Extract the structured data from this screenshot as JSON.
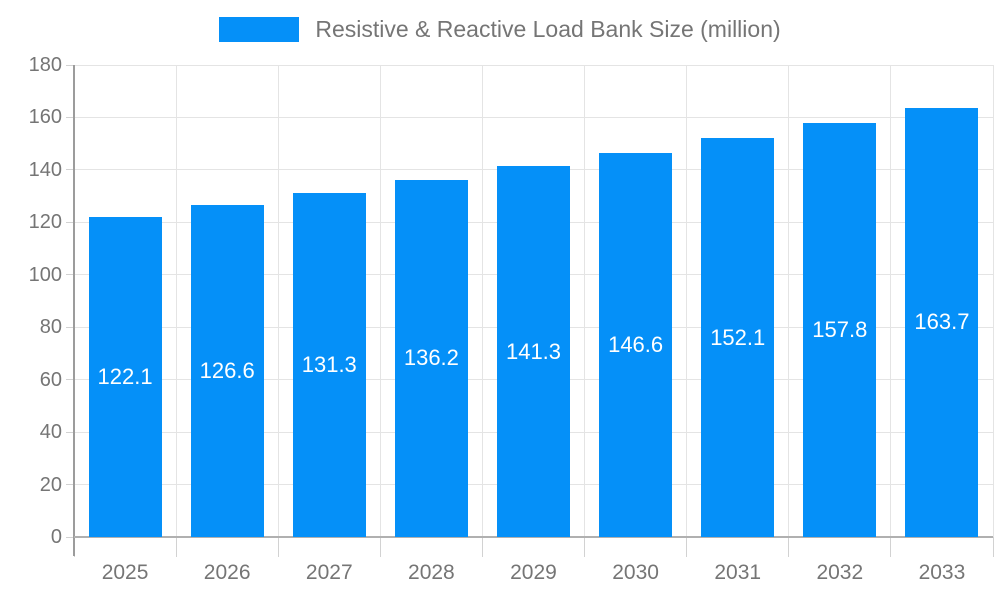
{
  "colors": {
    "bar": "#0590f8",
    "text": "#757575",
    "grid": "#e4e4e4",
    "axis_x": "#b0b0b0",
    "axis_y": "#9c9c9c",
    "tick": "#d2d2d2",
    "data_label": "#ffffff",
    "background": "#ffffff"
  },
  "legend": {
    "label": "Resistive & Reactive Load Bank Size (million)"
  },
  "chart_data": {
    "type": "bar",
    "title": "Resistive & Reactive Load Bank Size (million)",
    "categories": [
      "2025",
      "2026",
      "2027",
      "2028",
      "2029",
      "2030",
      "2031",
      "2032",
      "2033"
    ],
    "values": [
      122.1,
      126.6,
      131.3,
      136.2,
      141.3,
      146.6,
      152.1,
      157.8,
      163.7
    ],
    "series_name": "Resistive & Reactive Load Bank Size (million)",
    "xlabel": "",
    "ylabel": "",
    "ylim": [
      0,
      180
    ],
    "ytick_step": 20,
    "yticks": [
      0,
      20,
      40,
      60,
      80,
      100,
      120,
      140,
      160,
      180
    ],
    "grid": "horizontal-and-vertical",
    "legend_position": "top-center",
    "bar_label_position": "inside-center",
    "bar_label_decimals": 1
  }
}
